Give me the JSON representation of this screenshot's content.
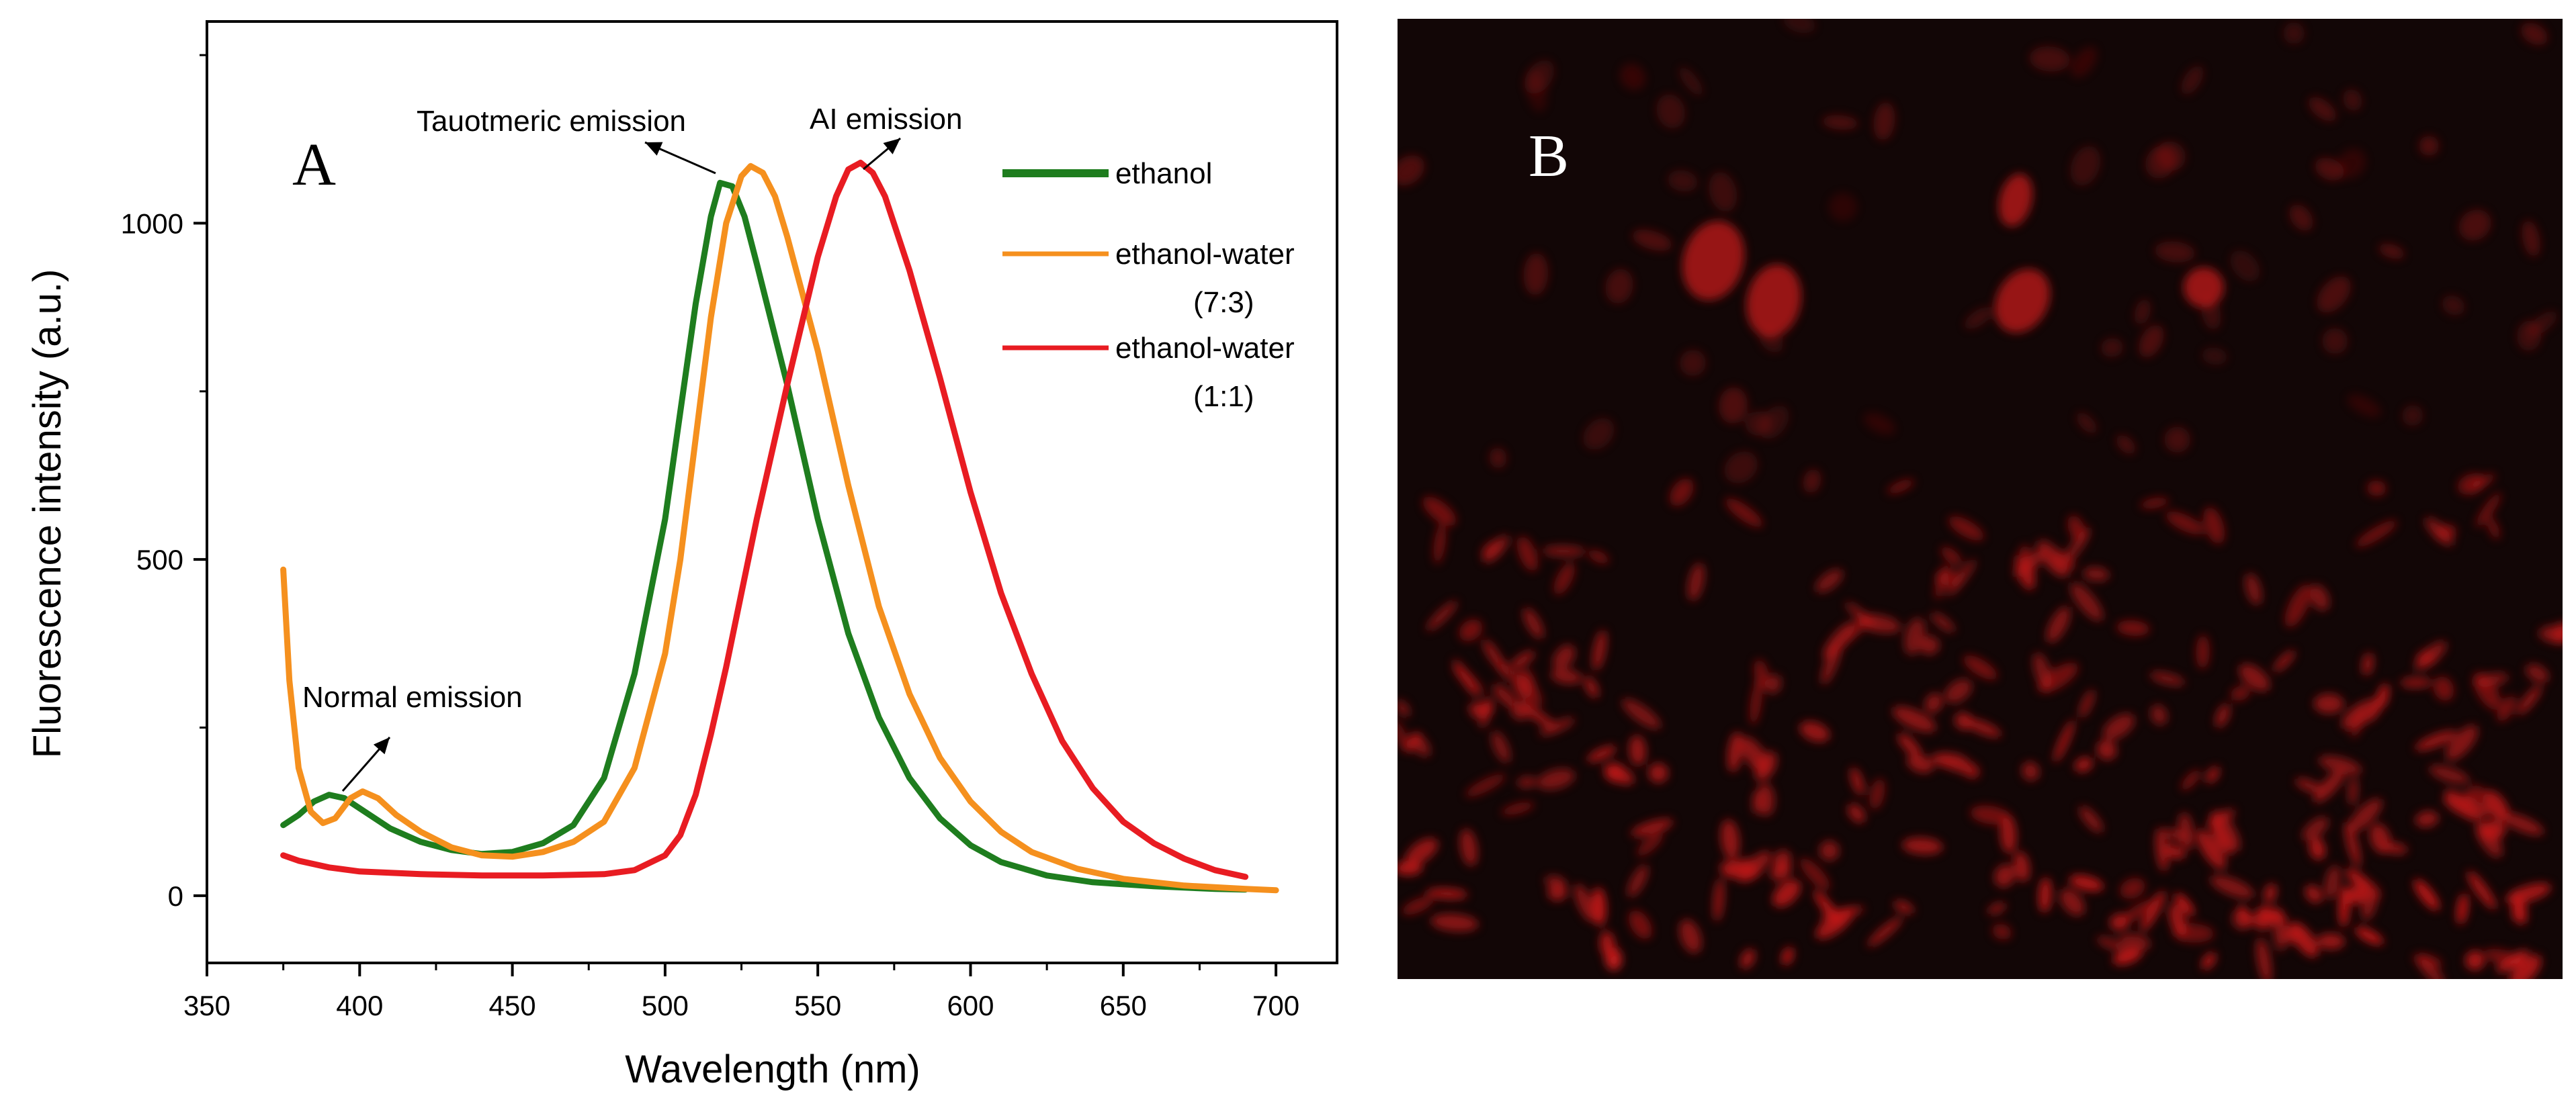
{
  "chart_data": {
    "type": "line",
    "panel_label": "A",
    "xlabel": "Wavelength (nm)",
    "ylabel": "Fluorescence intensity (a.u.)",
    "xlim": [
      350,
      720
    ],
    "ylim": [
      -100,
      1300
    ],
    "xticks": [
      350,
      400,
      450,
      500,
      550,
      600,
      650,
      700
    ],
    "yticks": [
      0,
      500,
      1000
    ],
    "grid": false,
    "legend_position": "top-right",
    "series": [
      {
        "name": "ethanol",
        "color": "#1e7d1e",
        "points": [
          [
            375,
            105
          ],
          [
            380,
            120
          ],
          [
            385,
            140
          ],
          [
            390,
            150
          ],
          [
            395,
            145
          ],
          [
            400,
            130
          ],
          [
            410,
            100
          ],
          [
            420,
            80
          ],
          [
            430,
            68
          ],
          [
            440,
            62
          ],
          [
            450,
            65
          ],
          [
            460,
            78
          ],
          [
            470,
            105
          ],
          [
            480,
            175
          ],
          [
            490,
            330
          ],
          [
            500,
            560
          ],
          [
            505,
            720
          ],
          [
            510,
            880
          ],
          [
            515,
            1010
          ],
          [
            518,
            1060
          ],
          [
            522,
            1055
          ],
          [
            526,
            1010
          ],
          [
            530,
            940
          ],
          [
            540,
            760
          ],
          [
            550,
            560
          ],
          [
            560,
            390
          ],
          [
            570,
            265
          ],
          [
            580,
            175
          ],
          [
            590,
            115
          ],
          [
            600,
            75
          ],
          [
            610,
            50
          ],
          [
            625,
            30
          ],
          [
            640,
            20
          ],
          [
            660,
            14
          ],
          [
            680,
            10
          ],
          [
            690,
            9
          ]
        ]
      },
      {
        "name": "ethanol-water (7:3)",
        "color": "#f5901e",
        "points": [
          [
            375,
            485
          ],
          [
            377,
            320
          ],
          [
            380,
            190
          ],
          [
            384,
            125
          ],
          [
            388,
            108
          ],
          [
            392,
            115
          ],
          [
            397,
            145
          ],
          [
            401,
            155
          ],
          [
            406,
            145
          ],
          [
            412,
            120
          ],
          [
            420,
            95
          ],
          [
            430,
            72
          ],
          [
            440,
            60
          ],
          [
            450,
            58
          ],
          [
            460,
            65
          ],
          [
            470,
            80
          ],
          [
            480,
            110
          ],
          [
            490,
            190
          ],
          [
            500,
            360
          ],
          [
            505,
            500
          ],
          [
            510,
            680
          ],
          [
            515,
            860
          ],
          [
            520,
            1000
          ],
          [
            525,
            1070
          ],
          [
            528,
            1085
          ],
          [
            532,
            1075
          ],
          [
            536,
            1040
          ],
          [
            540,
            980
          ],
          [
            550,
            810
          ],
          [
            560,
            610
          ],
          [
            570,
            430
          ],
          [
            580,
            300
          ],
          [
            590,
            205
          ],
          [
            600,
            140
          ],
          [
            610,
            95
          ],
          [
            620,
            65
          ],
          [
            635,
            40
          ],
          [
            650,
            25
          ],
          [
            670,
            15
          ],
          [
            690,
            10
          ],
          [
            700,
            8
          ]
        ]
      },
      {
        "name": "ethanol-water (1:1)",
        "color": "#e81c22",
        "points": [
          [
            375,
            60
          ],
          [
            380,
            52
          ],
          [
            390,
            42
          ],
          [
            400,
            36
          ],
          [
            420,
            32
          ],
          [
            440,
            30
          ],
          [
            460,
            30
          ],
          [
            480,
            32
          ],
          [
            490,
            38
          ],
          [
            500,
            60
          ],
          [
            505,
            90
          ],
          [
            510,
            150
          ],
          [
            515,
            240
          ],
          [
            520,
            340
          ],
          [
            525,
            450
          ],
          [
            530,
            560
          ],
          [
            540,
            760
          ],
          [
            550,
            950
          ],
          [
            556,
            1040
          ],
          [
            560,
            1080
          ],
          [
            564,
            1090
          ],
          [
            568,
            1075
          ],
          [
            572,
            1040
          ],
          [
            580,
            930
          ],
          [
            590,
            770
          ],
          [
            600,
            600
          ],
          [
            610,
            450
          ],
          [
            620,
            330
          ],
          [
            630,
            230
          ],
          [
            640,
            160
          ],
          [
            650,
            110
          ],
          [
            660,
            78
          ],
          [
            670,
            55
          ],
          [
            680,
            38
          ],
          [
            690,
            28
          ]
        ]
      }
    ],
    "legend": [
      {
        "lines": [
          "ethanol"
        ],
        "color": "#1e7d1e"
      },
      {
        "lines": [
          "ethanol-water",
          "(7:3)"
        ],
        "color": "#f5901e"
      },
      {
        "lines": [
          "ethanol-water",
          "(1:1)"
        ],
        "color": "#e81c22"
      }
    ],
    "annotations": [
      {
        "text": "Tauotmeric emission"
      },
      {
        "text": "AI emission"
      },
      {
        "text": "Normal emission"
      }
    ]
  },
  "panel_b": {
    "label": "B",
    "description_color": "#c41a1a"
  }
}
